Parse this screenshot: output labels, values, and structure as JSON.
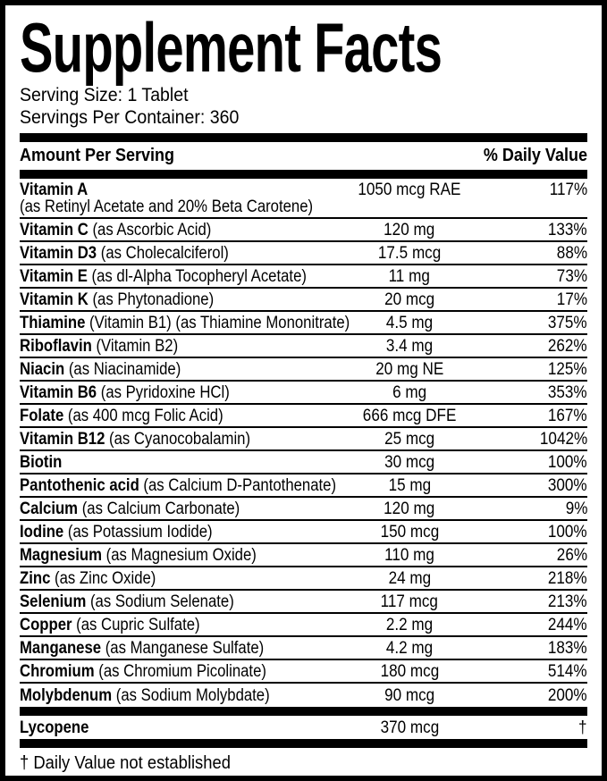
{
  "label": {
    "title": "Supplement Facts",
    "serving_size": "Serving Size: 1 Tablet",
    "servings_per_container": "Servings Per Container: 360",
    "header": {
      "amount_col": "Amount Per Serving",
      "dv_col": "% Daily Value"
    },
    "nutrients": [
      {
        "name": "Vitamin A",
        "form": "",
        "sub": "(as Retinyl Acetate and 20% Beta Carotene)",
        "amount": "1050 mcg RAE",
        "dv": "117%"
      },
      {
        "name": "Vitamin C",
        "form": "(as Ascorbic Acid)",
        "sub": "",
        "amount": "120 mg",
        "dv": "133%"
      },
      {
        "name": "Vitamin D3",
        "form": "(as Cholecalciferol)",
        "sub": "",
        "amount": "17.5 mcg",
        "dv": "88%"
      },
      {
        "name": "Vitamin E",
        "form": "(as dl-Alpha Tocopheryl Acetate)",
        "sub": "",
        "amount": "11 mg",
        "dv": "73%"
      },
      {
        "name": "Vitamin K",
        "form": "(as Phytonadione)",
        "sub": "",
        "amount": "20 mcg",
        "dv": "17%"
      },
      {
        "name": "Thiamine",
        "form": "(Vitamin B1) (as Thiamine Mononitrate)",
        "sub": "",
        "amount": "4.5 mg",
        "dv": "375%"
      },
      {
        "name": "Riboflavin",
        "form": "(Vitamin B2)",
        "sub": "",
        "amount": "3.4 mg",
        "dv": "262%"
      },
      {
        "name": "Niacin",
        "form": "(as Niacinamide)",
        "sub": "",
        "amount": "20 mg NE",
        "dv": "125%"
      },
      {
        "name": "Vitamin B6",
        "form": "(as Pyridoxine HCl)",
        "sub": "",
        "amount": "6 mg",
        "dv": "353%"
      },
      {
        "name": "Folate",
        "form": "(as 400 mcg Folic Acid)",
        "sub": "",
        "amount": "666 mcg DFE",
        "dv": "167%"
      },
      {
        "name": "Vitamin B12",
        "form": "(as Cyanocobalamin)",
        "sub": "",
        "amount": "25 mcg",
        "dv": "1042%"
      },
      {
        "name": "Biotin",
        "form": "",
        "sub": "",
        "amount": "30 mcg",
        "dv": "100%"
      },
      {
        "name": "Pantothenic acid",
        "form": "(as Calcium D-Pantothenate)",
        "sub": "",
        "amount": "15 mg",
        "dv": "300%"
      },
      {
        "name": "Calcium",
        "form": "(as Calcium Carbonate)",
        "sub": "",
        "amount": "120 mg",
        "dv": "9%"
      },
      {
        "name": "Iodine",
        "form": "(as Potassium Iodide)",
        "sub": "",
        "amount": "150 mcg",
        "dv": "100%"
      },
      {
        "name": "Magnesium",
        "form": "(as Magnesium Oxide)",
        "sub": "",
        "amount": "110 mg",
        "dv": "26%"
      },
      {
        "name": "Zinc",
        "form": "(as Zinc Oxide)",
        "sub": "",
        "amount": "24 mg",
        "dv": "218%"
      },
      {
        "name": "Selenium",
        "form": "(as Sodium Selenate)",
        "sub": "",
        "amount": "117 mcg",
        "dv": "213%"
      },
      {
        "name": "Copper",
        "form": "(as Cupric Sulfate)",
        "sub": "",
        "amount": "2.2 mg",
        "dv": "244%"
      },
      {
        "name": "Manganese",
        "form": "(as Manganese Sulfate)",
        "sub": "",
        "amount": "4.2 mg",
        "dv": "183%"
      },
      {
        "name": "Chromium",
        "form": "(as Chromium Picolinate)",
        "sub": "",
        "amount": "180 mcg",
        "dv": "514%"
      },
      {
        "name": "Molybdenum",
        "form": "(as Sodium Molybdate)",
        "sub": "",
        "amount": "90 mcg",
        "dv": "200%"
      }
    ],
    "other_ingredients": [
      {
        "name": "Lycopene",
        "form": "",
        "sub": "",
        "amount": "370 mcg",
        "dv": "†"
      }
    ],
    "footnote": "† Daily Value not established",
    "colors": {
      "ink": "#000000",
      "paper": "#ffffff"
    }
  }
}
